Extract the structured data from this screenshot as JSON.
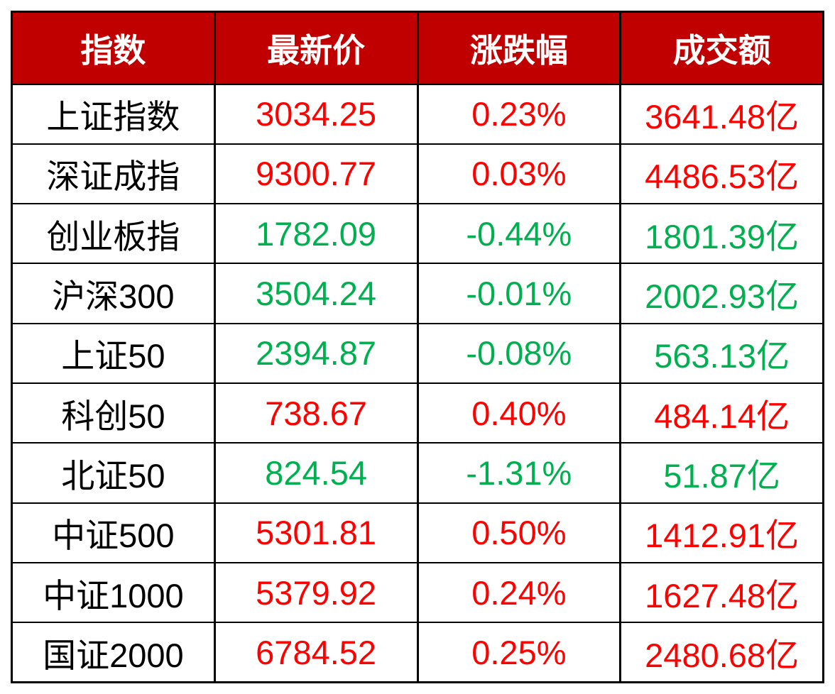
{
  "colors": {
    "header_bg": "#C00000",
    "header_text": "#FFFFFF",
    "up": "#FF0000",
    "down": "#00B050",
    "border": "#000000",
    "index_name": "#000000",
    "page_bg": "#FFFFFF"
  },
  "chart_data": {
    "type": "table",
    "columns": [
      "指数",
      "最新价",
      "涨跌幅",
      "成交额"
    ],
    "rows": [
      {
        "name": "上证指数",
        "price": "3034.25",
        "change": "0.23%",
        "turnover": "3641.48亿",
        "trend": "up"
      },
      {
        "name": "深证成指",
        "price": "9300.77",
        "change": "0.03%",
        "turnover": "4486.53亿",
        "trend": "up"
      },
      {
        "name": "创业板指",
        "price": "1782.09",
        "change": "-0.44%",
        "turnover": "1801.39亿",
        "trend": "down"
      },
      {
        "name": "沪深300",
        "price": "3504.24",
        "change": "-0.01%",
        "turnover": "2002.93亿",
        "trend": "down"
      },
      {
        "name": "上证50",
        "price": "2394.87",
        "change": "-0.08%",
        "turnover": "563.13亿",
        "trend": "down"
      },
      {
        "name": "科创50",
        "price": "738.67",
        "change": "0.40%",
        "turnover": "484.14亿",
        "trend": "up"
      },
      {
        "name": "北证50",
        "price": "824.54",
        "change": "-1.31%",
        "turnover": "51.87亿",
        "trend": "down"
      },
      {
        "name": "中证500",
        "price": "5301.81",
        "change": "0.50%",
        "turnover": "1412.91亿",
        "trend": "up"
      },
      {
        "name": "中证1000",
        "price": "5379.92",
        "change": "0.24%",
        "turnover": "1627.48亿",
        "trend": "up"
      },
      {
        "name": "国证2000",
        "price": "6784.52",
        "change": "0.25%",
        "turnover": "2480.68亿",
        "trend": "up"
      }
    ]
  }
}
